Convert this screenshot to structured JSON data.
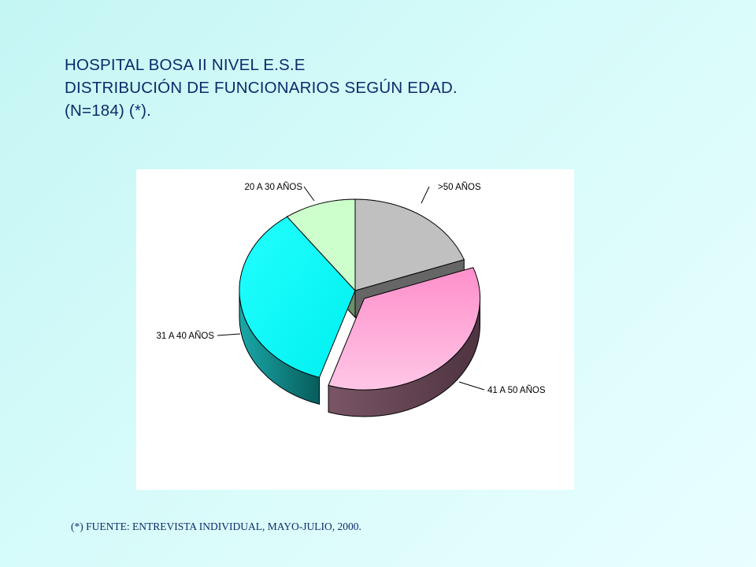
{
  "title": {
    "line1": "HOSPITAL BOSA II NIVEL E.S.E",
    "line2": "DISTRIBUCIÓN DE FUNCIONARIOS SEGÚN EDAD.",
    "line3": "(N=184) (*)."
  },
  "source_note": "(*) FUENTE: ENTREVISTA INDIVIDUAL, MAYO-JULIO, 2000.",
  "chart_data": {
    "type": "pie",
    "style": "3d-exploded",
    "total": 184,
    "slices": [
      {
        "label": ">50 AÑOS",
        "value": 19.5,
        "color": "#c0c0c0",
        "side_color": "#666666"
      },
      {
        "label": "41 A 50 AÑOS",
        "value": 35.5,
        "color": "#ff9ad0",
        "side_color": "#6a4455"
      },
      {
        "label": "31 A 40 AÑOS",
        "value": 35.0,
        "color": "#00ffff",
        "side_color": "#0d8b8b"
      },
      {
        "label": "20 A 30 AÑOS",
        "value": 10.0,
        "color": "#ccffcc",
        "side_color": "#6b8e6b"
      }
    ],
    "exploded": "41 A 50 AÑOS",
    "value_unit": "percent (estimated)"
  }
}
